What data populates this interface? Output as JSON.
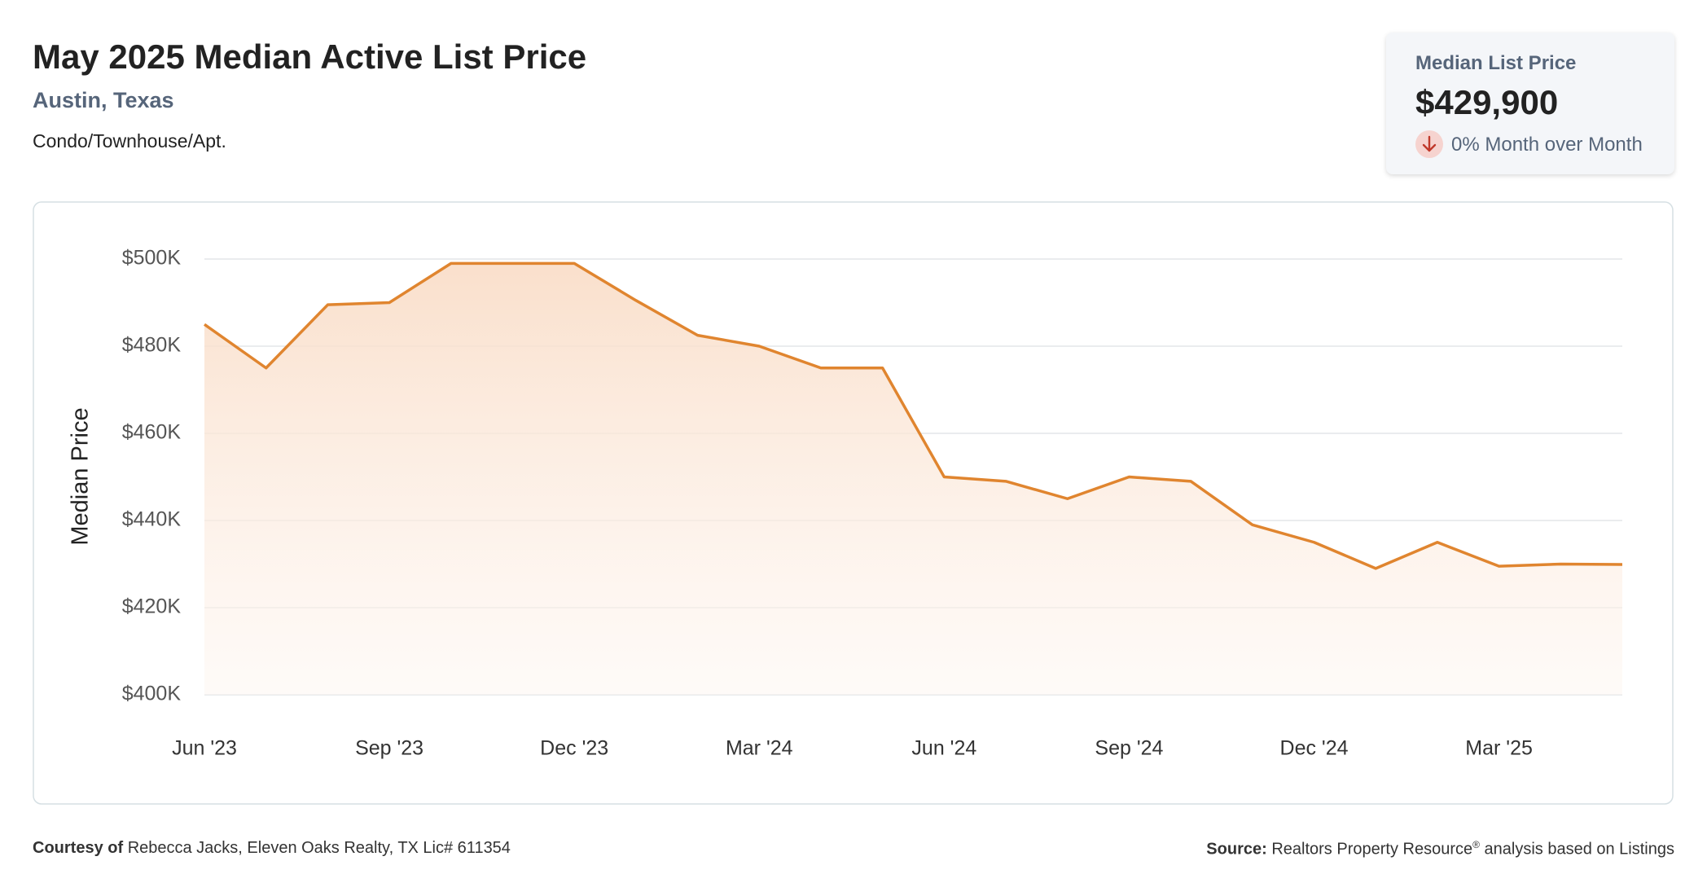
{
  "header": {
    "title": "May 2025 Median Active List Price",
    "subtitle": "Austin, Texas",
    "segment": "Condo/Townhouse/Apt."
  },
  "card": {
    "label": "Median List Price",
    "value": "$429,900",
    "change": "0% Month over Month"
  },
  "chart_data": {
    "type": "line",
    "y_label": "Median Price",
    "categories": [
      "Jun '23",
      null,
      null,
      "Sep '23",
      null,
      null,
      "Dec '23",
      null,
      null,
      "Mar '24",
      null,
      null,
      "Jun '24",
      null,
      null,
      "Sep '24",
      null,
      null,
      "Dec '24",
      null,
      null,
      "Mar '25",
      null,
      null
    ],
    "series": [
      {
        "name": "Median List Price",
        "color": "#e0852f",
        "values": [
          485000,
          475000,
          489500,
          490000,
          499000,
          499000,
          499000,
          490500,
          482500,
          480000,
          475000,
          475000,
          450000,
          449000,
          445000,
          450000,
          449000,
          439000,
          435000,
          429000,
          435000,
          429500,
          430000,
          429900
        ]
      }
    ],
    "ylim": [
      400000,
      500000
    ],
    "yticks": [
      {
        "value": 400000,
        "label": "$400K"
      },
      {
        "value": 420000,
        "label": "$420K"
      },
      {
        "value": 440000,
        "label": "$440K"
      },
      {
        "value": 460000,
        "label": "$460K"
      },
      {
        "value": 480000,
        "label": "$480K"
      },
      {
        "value": 500000,
        "label": "$500K"
      }
    ],
    "grid": true,
    "area_fill": true
  },
  "footer": {
    "courtesy_label": "Courtesy of",
    "courtesy": "Rebecca Jacks, Eleven Oaks Realty, TX Lic# 611354",
    "source_label": "Source:",
    "source": "Realtors Property Resource",
    "source_mark": "®",
    "source_rest": " analysis based on Listings"
  }
}
